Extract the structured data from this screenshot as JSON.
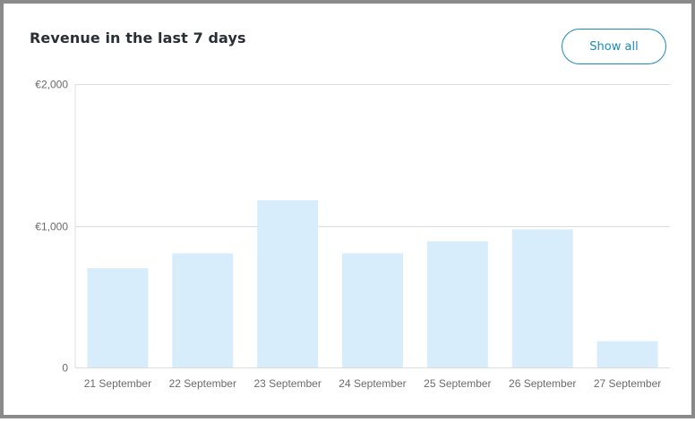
{
  "card": {
    "title": "Revenue in the last 7 days",
    "show_all_label": "Show all"
  },
  "colors": {
    "bar": "#d8edfb",
    "grid": "#dcdcdc",
    "axis_text": "#6b6b6b",
    "accent": "#1b8bb5"
  },
  "chart_data": {
    "type": "bar",
    "title": "Revenue in the last 7 days",
    "xlabel": "",
    "ylabel": "",
    "categories": [
      "21 September",
      "22 September",
      "23 September",
      "24 September",
      "25 September",
      "26 September",
      "27 September"
    ],
    "values": [
      700,
      805,
      1180,
      805,
      890,
      975,
      185
    ],
    "ylim": [
      0,
      2000
    ],
    "yticks": [
      0,
      1000,
      2000
    ],
    "ytick_labels": [
      "0",
      "€1,000",
      "€2,000"
    ],
    "grid": true,
    "legend": "none"
  }
}
